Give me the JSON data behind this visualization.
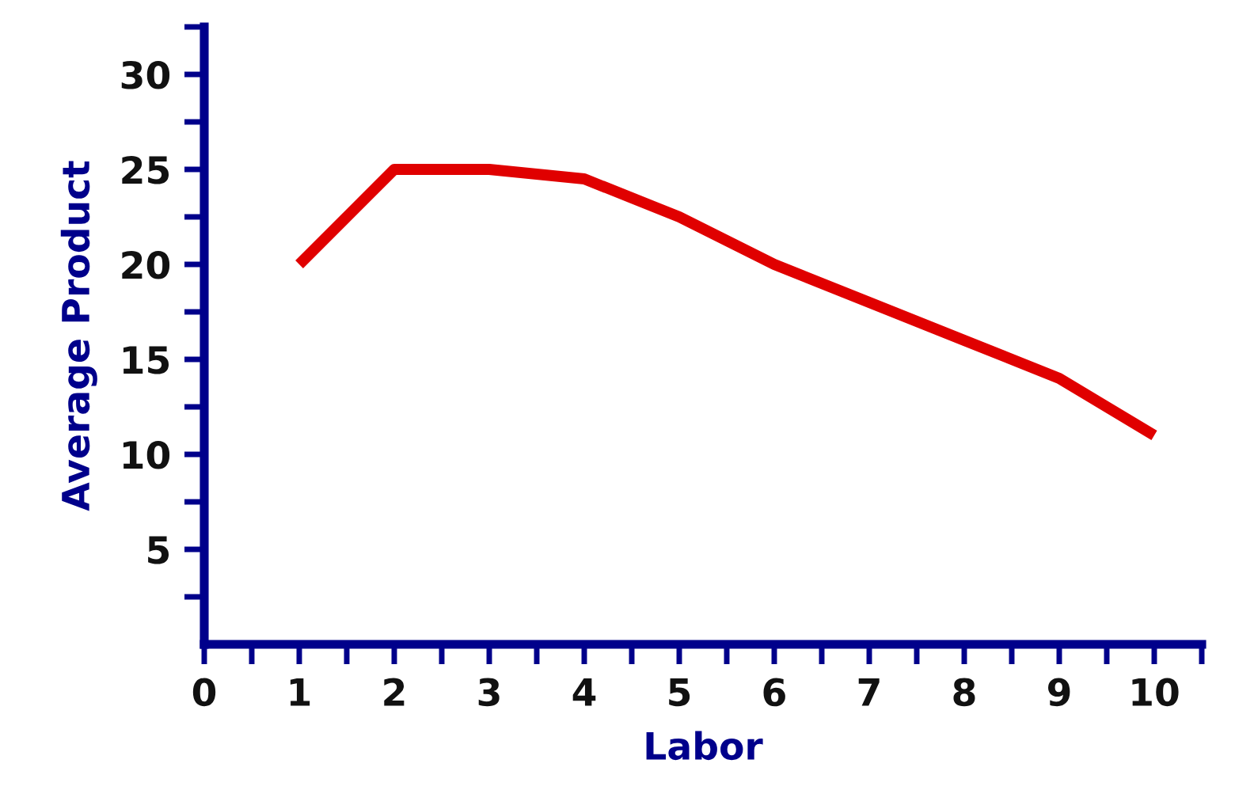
{
  "chart_data": {
    "type": "line",
    "xlabel": "Labor",
    "ylabel": "Average Product",
    "x": [
      1,
      2,
      3,
      4,
      5,
      6,
      7,
      8,
      9,
      10
    ],
    "series": [
      {
        "color": "#e00000",
        "values": [
          20,
          25,
          25,
          24.5,
          22.5,
          20,
          18,
          16,
          14,
          11
        ]
      }
    ],
    "xlim": [
      0,
      10.5
    ],
    "ylim": [
      0,
      32.5
    ],
    "xticks": [
      0,
      {
        "value": 0.5,
        "label": null
      },
      1,
      {
        "value": 1.5,
        "label": null
      },
      2,
      {
        "value": 2.5,
        "label": null
      },
      3,
      {
        "value": 3.5,
        "label": null
      },
      4,
      {
        "value": 4.5,
        "label": null
      },
      5,
      {
        "value": 5.5,
        "label": null
      },
      6,
      {
        "value": 6.5,
        "label": null
      },
      7,
      {
        "value": 7.5,
        "label": null
      },
      8,
      {
        "value": 8.5,
        "label": null
      },
      9,
      {
        "value": 9.5,
        "label": null
      },
      10,
      {
        "value": 10.5,
        "label": null
      }
    ],
    "yticks": [
      {
        "value": 2.5,
        "label": null
      },
      5,
      {
        "value": 7.5,
        "label": null
      },
      10,
      {
        "value": 12.5,
        "label": null
      },
      15,
      {
        "value": 17.5,
        "label": null
      },
      20,
      {
        "value": 22.5,
        "label": null
      },
      25,
      {
        "value": 27.5,
        "label": null
      },
      30,
      {
        "value": 32.5,
        "label": null
      }
    ],
    "grid": false,
    "legend": false,
    "marker": "none",
    "line_style": "solid"
  }
}
